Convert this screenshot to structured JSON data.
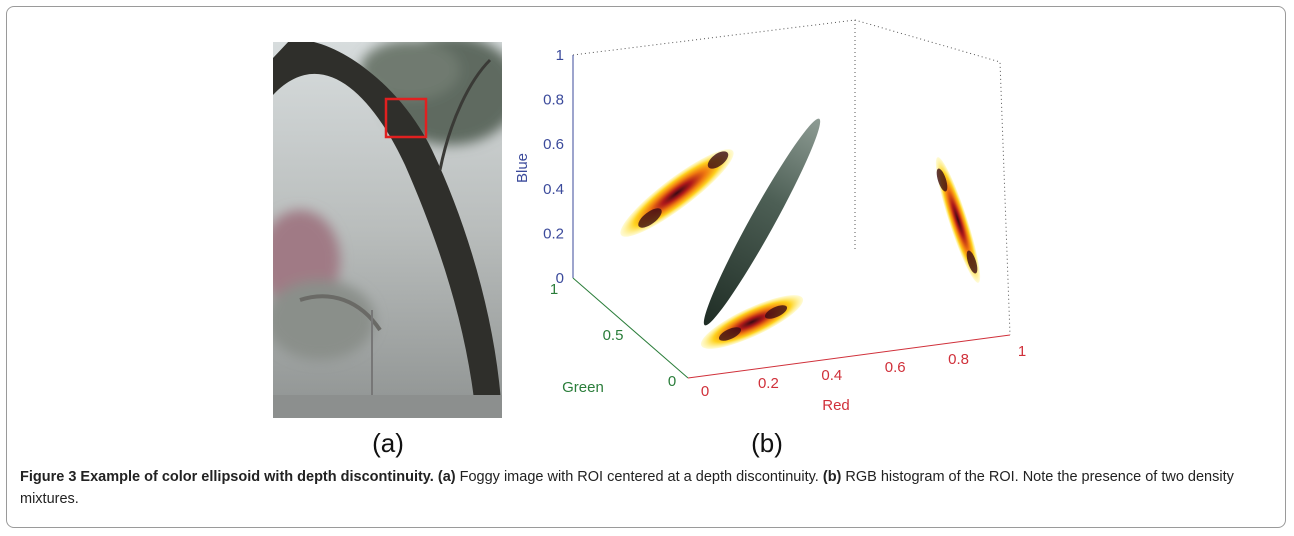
{
  "figure": {
    "panels": [
      {
        "label": "(a)"
      },
      {
        "label": "(b)",
        "axes": {
          "blue": {
            "title": "Blue",
            "ticks": [
              "0",
              "0.2",
              "0.4",
              "0.6",
              "0.8",
              "1"
            ]
          },
          "green": {
            "title": "Green",
            "ticks": [
              "0",
              "0.5",
              "1"
            ]
          },
          "red": {
            "title": "Red",
            "ticks": [
              "0",
              "0.2",
              "0.4",
              "0.6",
              "0.8",
              "1"
            ]
          }
        }
      }
    ],
    "caption": {
      "title": "Figure 3 Example of color ellipsoid with depth discontinuity.",
      "parts": [
        {
          "label": "(a)",
          "text": "Foggy image with ROI centered at a depth discontinuity."
        },
        {
          "label": "(b)",
          "text": "RGB histogram of the ROI. Note the presence of two density mixtures."
        }
      ]
    }
  }
}
